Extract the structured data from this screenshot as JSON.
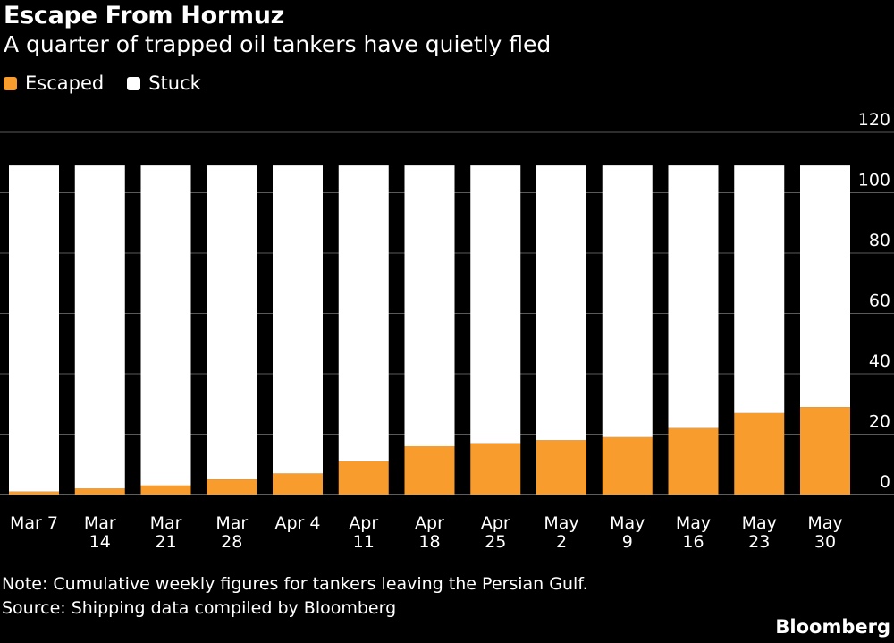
{
  "header": {
    "title": "Escape From Hormuz",
    "subtitle": "A quarter of trapped oil tankers have quietly fled"
  },
  "footer": {
    "note": "Note: Cumulative weekly figures for tankers leaving the Persian Gulf.",
    "source": "Source: Shipping data compiled by Bloomberg",
    "brand": "Bloomberg"
  },
  "colors": {
    "background": "#000000",
    "escaped": "#f79c2d",
    "stuck": "#ffffff",
    "grid": "#5a5a5a",
    "text": "#ffffff"
  },
  "chart_data": {
    "type": "bar",
    "stacked": true,
    "title": "Escape From Hormuz",
    "subtitle": "A quarter of trapped oil tankers have quietly fled",
    "categories": [
      [
        "Mar 7"
      ],
      [
        "Mar",
        "14"
      ],
      [
        "Mar",
        "21"
      ],
      [
        "Mar",
        "28"
      ],
      [
        "Apr 4"
      ],
      [
        "Apr",
        "11"
      ],
      [
        "Apr",
        "18"
      ],
      [
        "Apr",
        "25"
      ],
      [
        "May",
        "2"
      ],
      [
        "May",
        "9"
      ],
      [
        "May",
        "16"
      ],
      [
        "May",
        "23"
      ],
      [
        "May",
        "30"
      ]
    ],
    "series": [
      {
        "name": "Escaped",
        "color": "#f79c2d",
        "values": [
          1,
          2,
          3,
          5,
          7,
          11,
          16,
          17,
          18,
          19,
          22,
          27,
          29
        ]
      },
      {
        "name": "Stuck",
        "color": "#ffffff",
        "values": [
          108,
          107,
          106,
          104,
          102,
          98,
          93,
          92,
          91,
          90,
          87,
          82,
          80
        ]
      }
    ],
    "ylim": [
      0,
      120
    ],
    "yticks": [
      0,
      20,
      40,
      60,
      80,
      100,
      120
    ],
    "y_axis_side": "right",
    "grid": true,
    "legend_position": "top-left"
  }
}
